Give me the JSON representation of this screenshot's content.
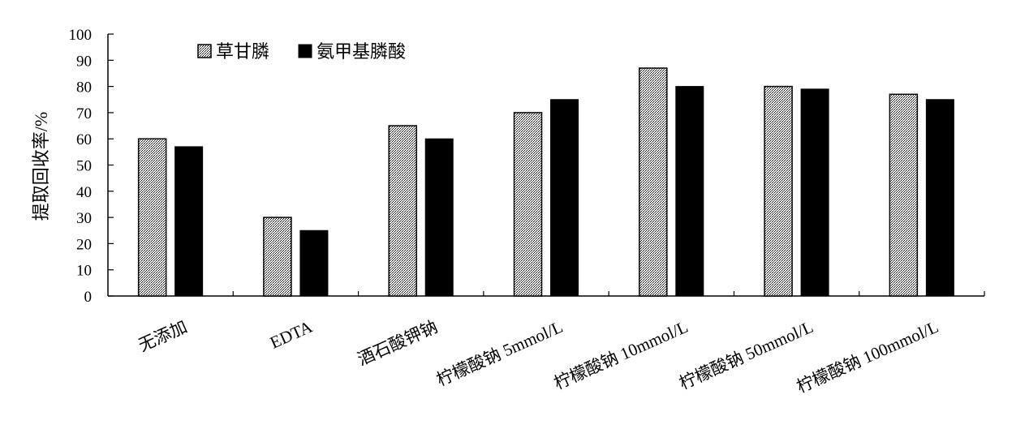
{
  "chart_data": {
    "type": "bar",
    "title": "",
    "xlabel": "",
    "ylabel": "提取回收率/%",
    "ylim": [
      0,
      100
    ],
    "ytick_step": 10,
    "grid": false,
    "legend_position": "top-left",
    "categories": [
      "无添加",
      "EDTA",
      "酒石酸钾钠",
      "柠檬酸钠 5mmol/L",
      "柠檬酸钠 10mmol/L",
      "柠檬酸钠 50mmol/L",
      "柠檬酸钠 100mmol/L"
    ],
    "series": [
      {
        "name": "草甘膦",
        "values": [
          60,
          30,
          65,
          70,
          87,
          80,
          77
        ],
        "color": "#ffffff",
        "pattern": "dotted-hatch"
      },
      {
        "name": "氨甲基膦酸",
        "values": [
          57,
          25,
          60,
          75,
          80,
          79,
          75
        ],
        "color": "#000000",
        "pattern": "solid"
      }
    ]
  }
}
